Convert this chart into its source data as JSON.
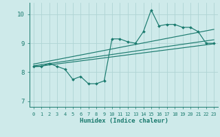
{
  "xlabel": "Humidex (Indice chaleur)",
  "bg_color": "#ceeaea",
  "grid_color": "#aed4d4",
  "line_color": "#1a7a6e",
  "xlim": [
    -0.5,
    23.5
  ],
  "ylim": [
    6.8,
    10.4
  ],
  "xticks": [
    0,
    1,
    2,
    3,
    4,
    5,
    6,
    7,
    8,
    9,
    10,
    11,
    12,
    13,
    14,
    15,
    16,
    17,
    18,
    19,
    20,
    21,
    22,
    23
  ],
  "yticks": [
    7,
    8,
    9,
    10
  ],
  "data_line": {
    "x": [
      0,
      1,
      2,
      3,
      4,
      5,
      6,
      7,
      8,
      9,
      10,
      11,
      12,
      13,
      14,
      15,
      16,
      17,
      18,
      19,
      20,
      21,
      22,
      23
    ],
    "y": [
      8.2,
      8.2,
      8.3,
      8.2,
      8.1,
      7.75,
      7.85,
      7.6,
      7.6,
      7.7,
      9.15,
      9.15,
      9.05,
      9.0,
      9.4,
      10.15,
      9.6,
      9.65,
      9.65,
      9.55,
      9.55,
      9.4,
      9.0,
      9.0
    ]
  },
  "reg_line1": {
    "x": [
      0,
      23
    ],
    "y": [
      8.18,
      8.98
    ]
  },
  "reg_line2": {
    "x": [
      0,
      23
    ],
    "y": [
      8.28,
      9.48
    ]
  },
  "reg_line3": {
    "x": [
      0,
      23
    ],
    "y": [
      8.22,
      9.12
    ]
  }
}
